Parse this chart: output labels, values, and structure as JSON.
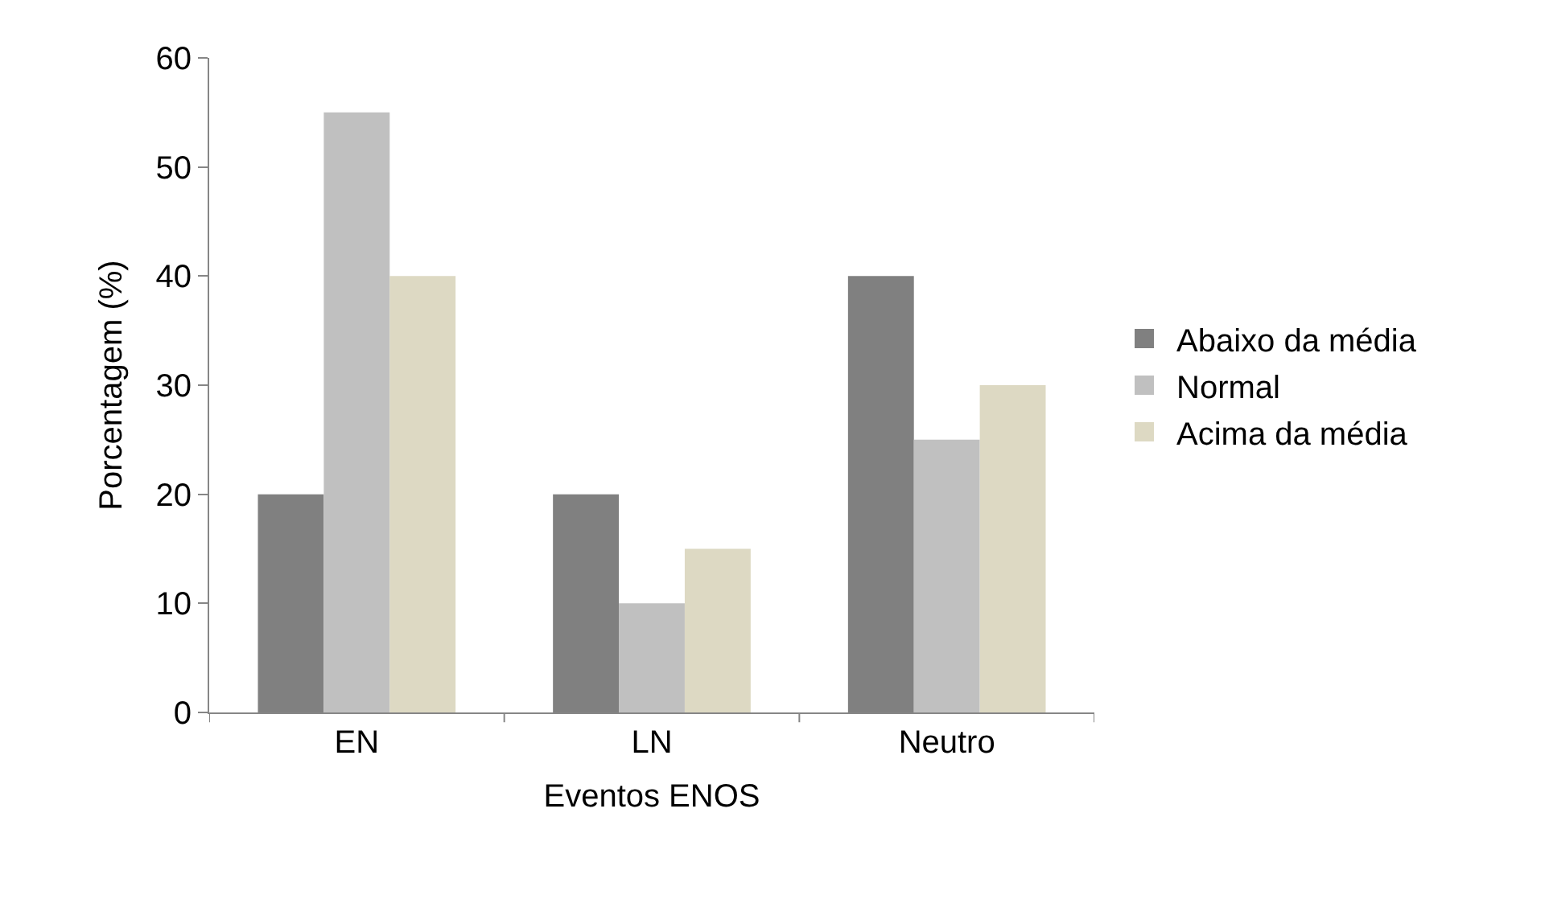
{
  "chart_data": {
    "type": "bar",
    "xlabel": "Eventos ENOS",
    "ylabel": "Porcentagem (%)",
    "categories": [
      "EN",
      "LN",
      "Neutro"
    ],
    "series": [
      {
        "name": "Abaixo da média",
        "color": "#808080",
        "values": [
          20,
          20,
          40
        ]
      },
      {
        "name": "Normal",
        "color": "#c0c0c0",
        "values": [
          55,
          10,
          25
        ]
      },
      {
        "name": "Acima da média",
        "color": "#ddd9c3",
        "values": [
          40,
          15,
          30
        ]
      }
    ],
    "ylim": [
      0,
      60
    ],
    "yticks": [
      0,
      10,
      20,
      30,
      40,
      50,
      60
    ],
    "grid": false,
    "legend": "right"
  }
}
